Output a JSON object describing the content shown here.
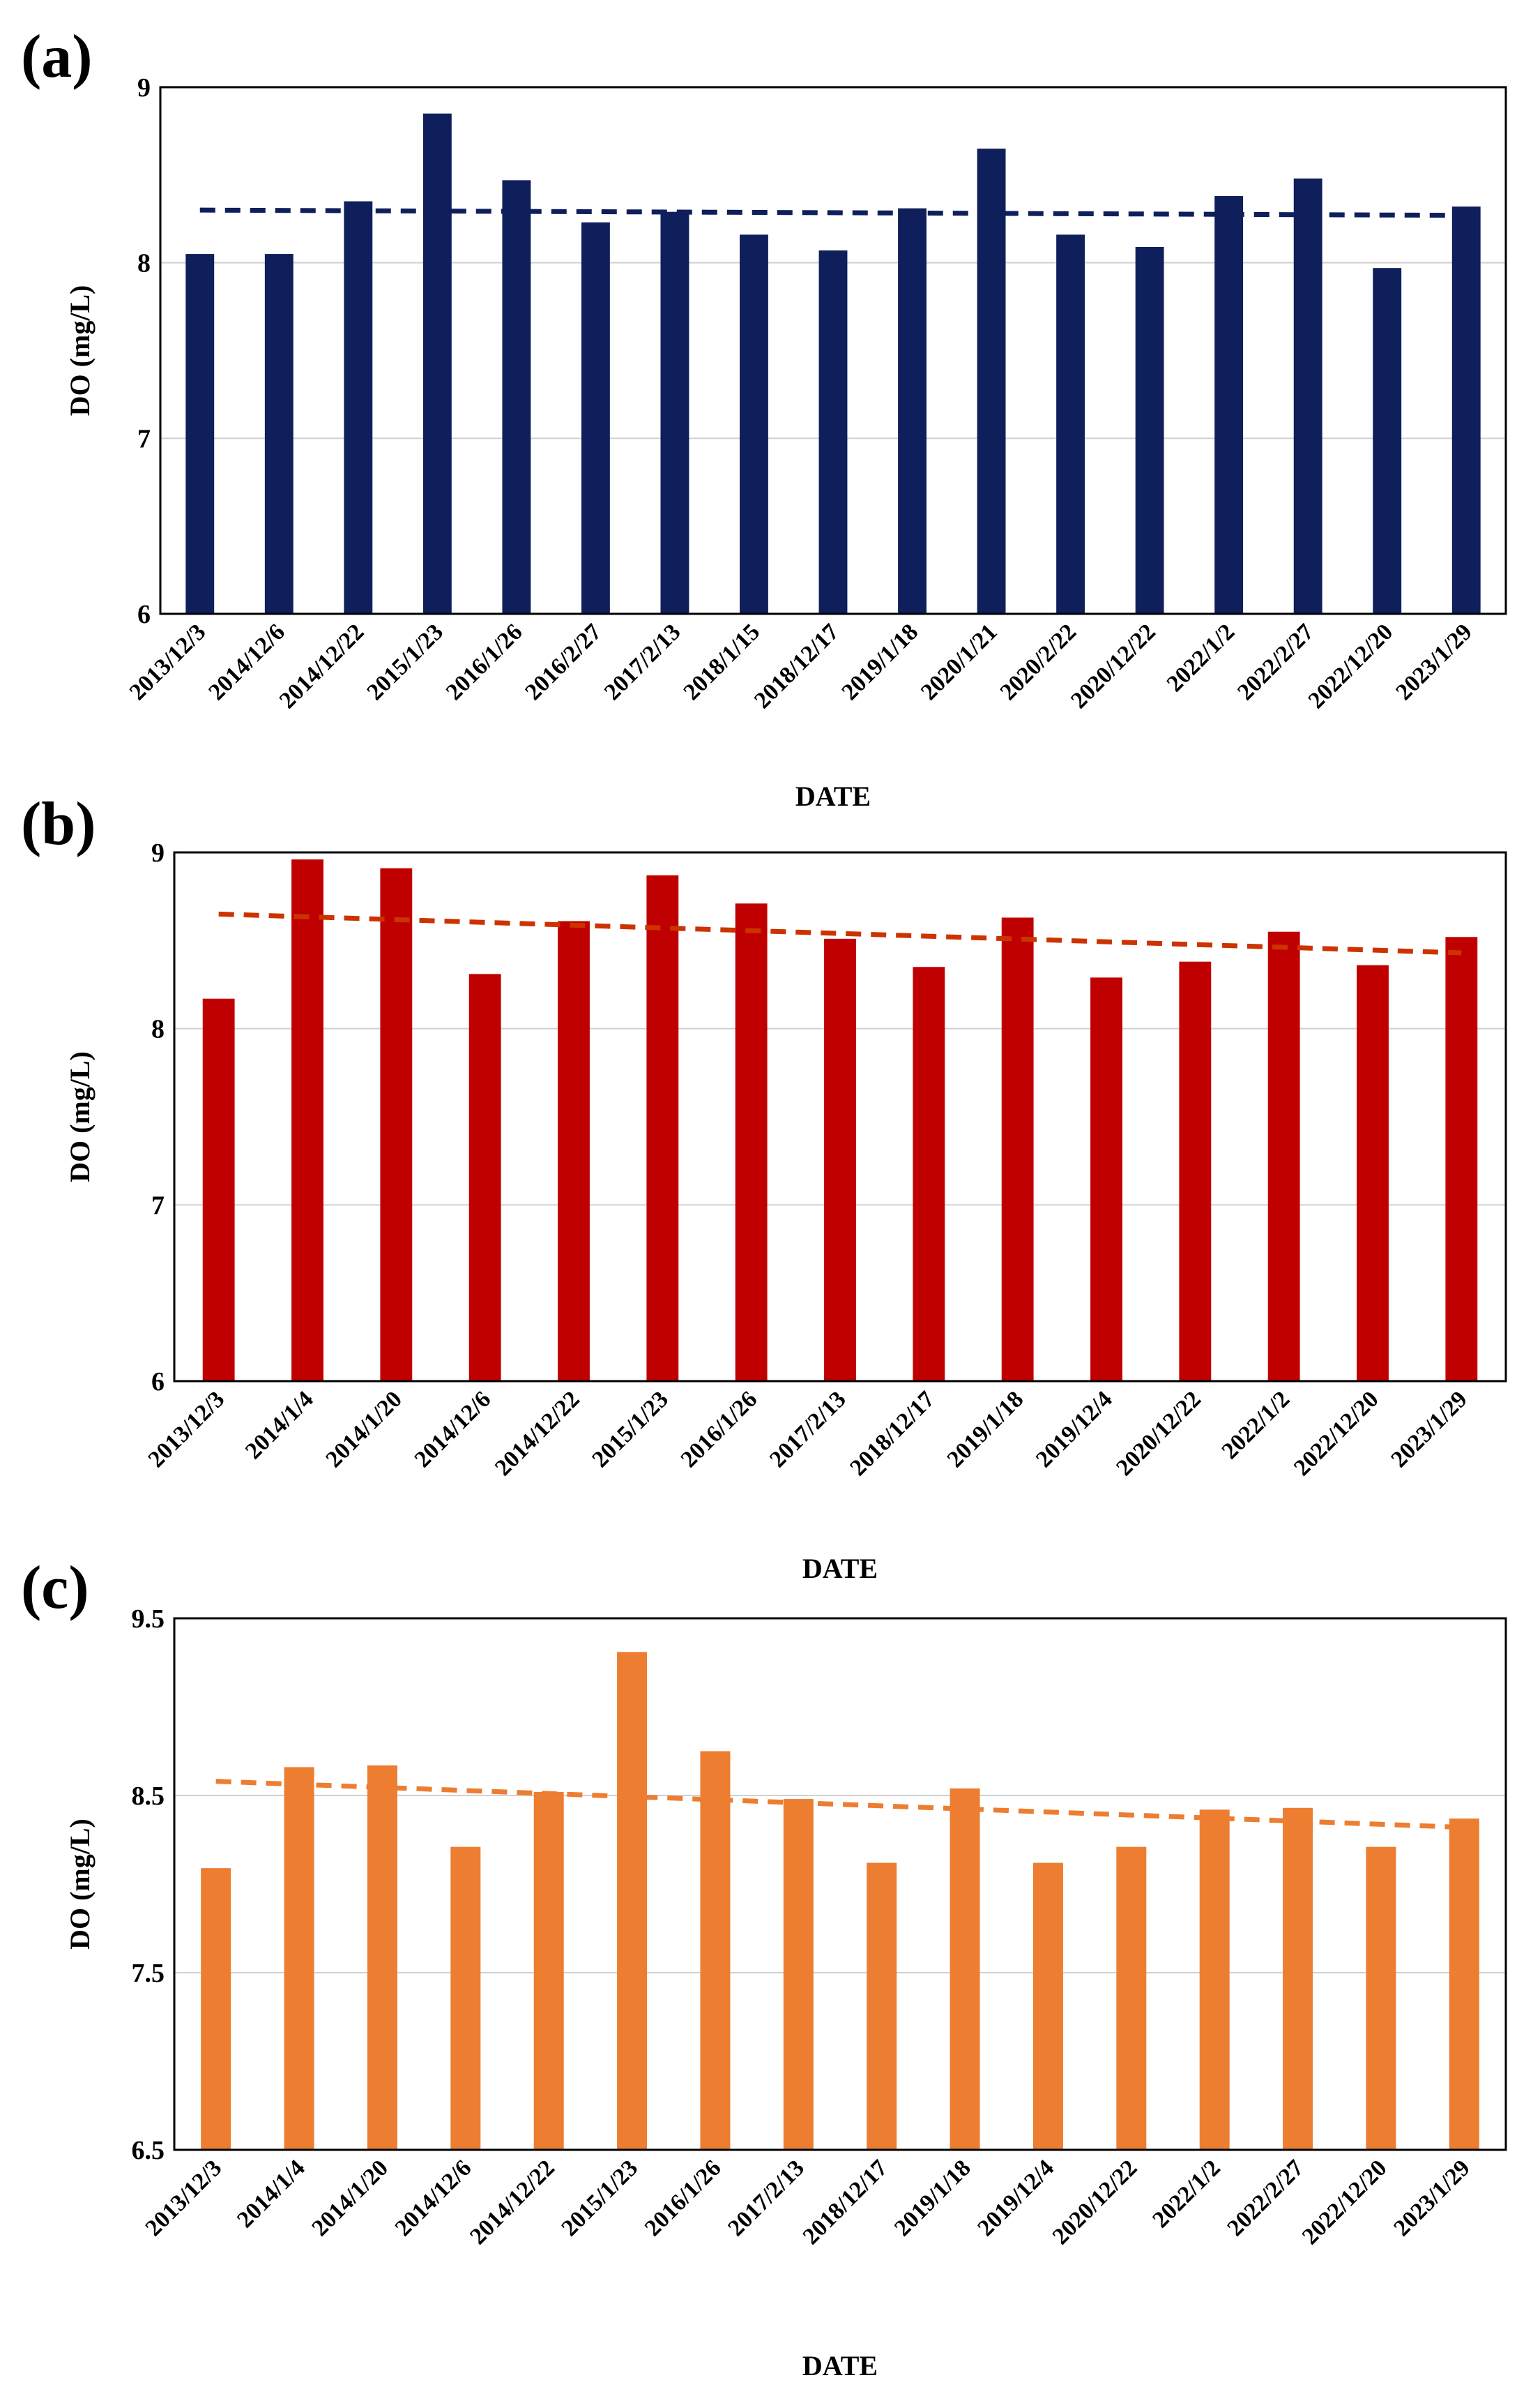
{
  "figure": {
    "panels": [
      {
        "label": "(a)",
        "color": "#0e1f5b",
        "trend_color": "#0e1f5b"
      },
      {
        "label": "(b)",
        "color": "#c00000",
        "trend_color": "#cc3300"
      },
      {
        "label": "(c)",
        "color": "#ed7d31",
        "trend_color": "#ed7d31"
      }
    ]
  },
  "chart_data": [
    {
      "type": "bar",
      "title": "(a)",
      "xlabel": "DATE",
      "ylabel": "DO (mg/L)",
      "ylim": [
        6,
        9
      ],
      "yticks": [
        "6",
        "7",
        "8",
        "9"
      ],
      "ytick_values": [
        6,
        7,
        8,
        9
      ],
      "grid": true,
      "categories": [
        "2013/12/3",
        "2014/12/6",
        "2014/12/22",
        "2015/1/23",
        "2016/1/26",
        "2016/2/27",
        "2017/2/13",
        "2018/1/15",
        "2018/12/17",
        "2019/1/18",
        "2020/1/21",
        "2020/2/22",
        "2020/12/22",
        "2022/1/2",
        "2022/2/27",
        "2022/12/20",
        "2023/1/29"
      ],
      "values": [
        8.05,
        8.05,
        8.35,
        8.85,
        8.47,
        8.23,
        8.29,
        8.16,
        8.07,
        8.31,
        8.65,
        8.16,
        8.09,
        8.38,
        8.48,
        7.97,
        8.32
      ],
      "trendline": {
        "style": "dashed",
        "start": 8.3,
        "end": 8.27
      }
    },
    {
      "type": "bar",
      "title": "(b)",
      "xlabel": "DATE",
      "ylabel": "DO (mg/L)",
      "ylim": [
        6,
        9
      ],
      "yticks": [
        "6",
        "7",
        "8",
        "9"
      ],
      "ytick_values": [
        6,
        7,
        8,
        9
      ],
      "grid": true,
      "categories": [
        "2013/12/3",
        "2014/1/4",
        "2014/1/20",
        "2014/12/6",
        "2014/12/22",
        "2015/1/23",
        "2016/1/26",
        "2017/2/13",
        "2018/12/17",
        "2019/1/18",
        "2019/12/4",
        "2020/12/22",
        "2022/1/2",
        "2022/12/20",
        "2023/1/29"
      ],
      "values": [
        8.17,
        8.96,
        8.91,
        8.31,
        8.61,
        8.87,
        8.71,
        8.51,
        8.35,
        8.63,
        8.29,
        8.38,
        8.55,
        8.36,
        8.52
      ],
      "trendline": {
        "style": "dashed",
        "start": 8.65,
        "end": 8.43
      }
    },
    {
      "type": "bar",
      "title": "(c)",
      "xlabel": "DATE",
      "ylabel": "DO (mg/L)",
      "ylim": [
        6.5,
        9.5
      ],
      "yticks": [
        "6.5",
        "7.5",
        "8.5",
        "9.5"
      ],
      "ytick_values": [
        6.5,
        7.5,
        8.5,
        9.5
      ],
      "grid": true,
      "categories": [
        "2013/12/3",
        "2014/1/4",
        "2014/1/20",
        "2014/12/6",
        "2014/12/22",
        "2015/1/23",
        "2016/1/26",
        "2017/2/13",
        "2018/12/17",
        "2019/1/18",
        "2019/12/4",
        "2020/12/22",
        "2022/1/2",
        "2022/2/27",
        "2022/12/20",
        "2023/1/29"
      ],
      "values": [
        8.09,
        8.66,
        8.67,
        8.21,
        8.52,
        9.31,
        8.75,
        8.48,
        8.12,
        8.54,
        8.12,
        8.21,
        8.42,
        8.43,
        8.21,
        8.37
      ],
      "trendline": {
        "style": "dashed",
        "start": 8.58,
        "end": 8.32
      }
    }
  ]
}
